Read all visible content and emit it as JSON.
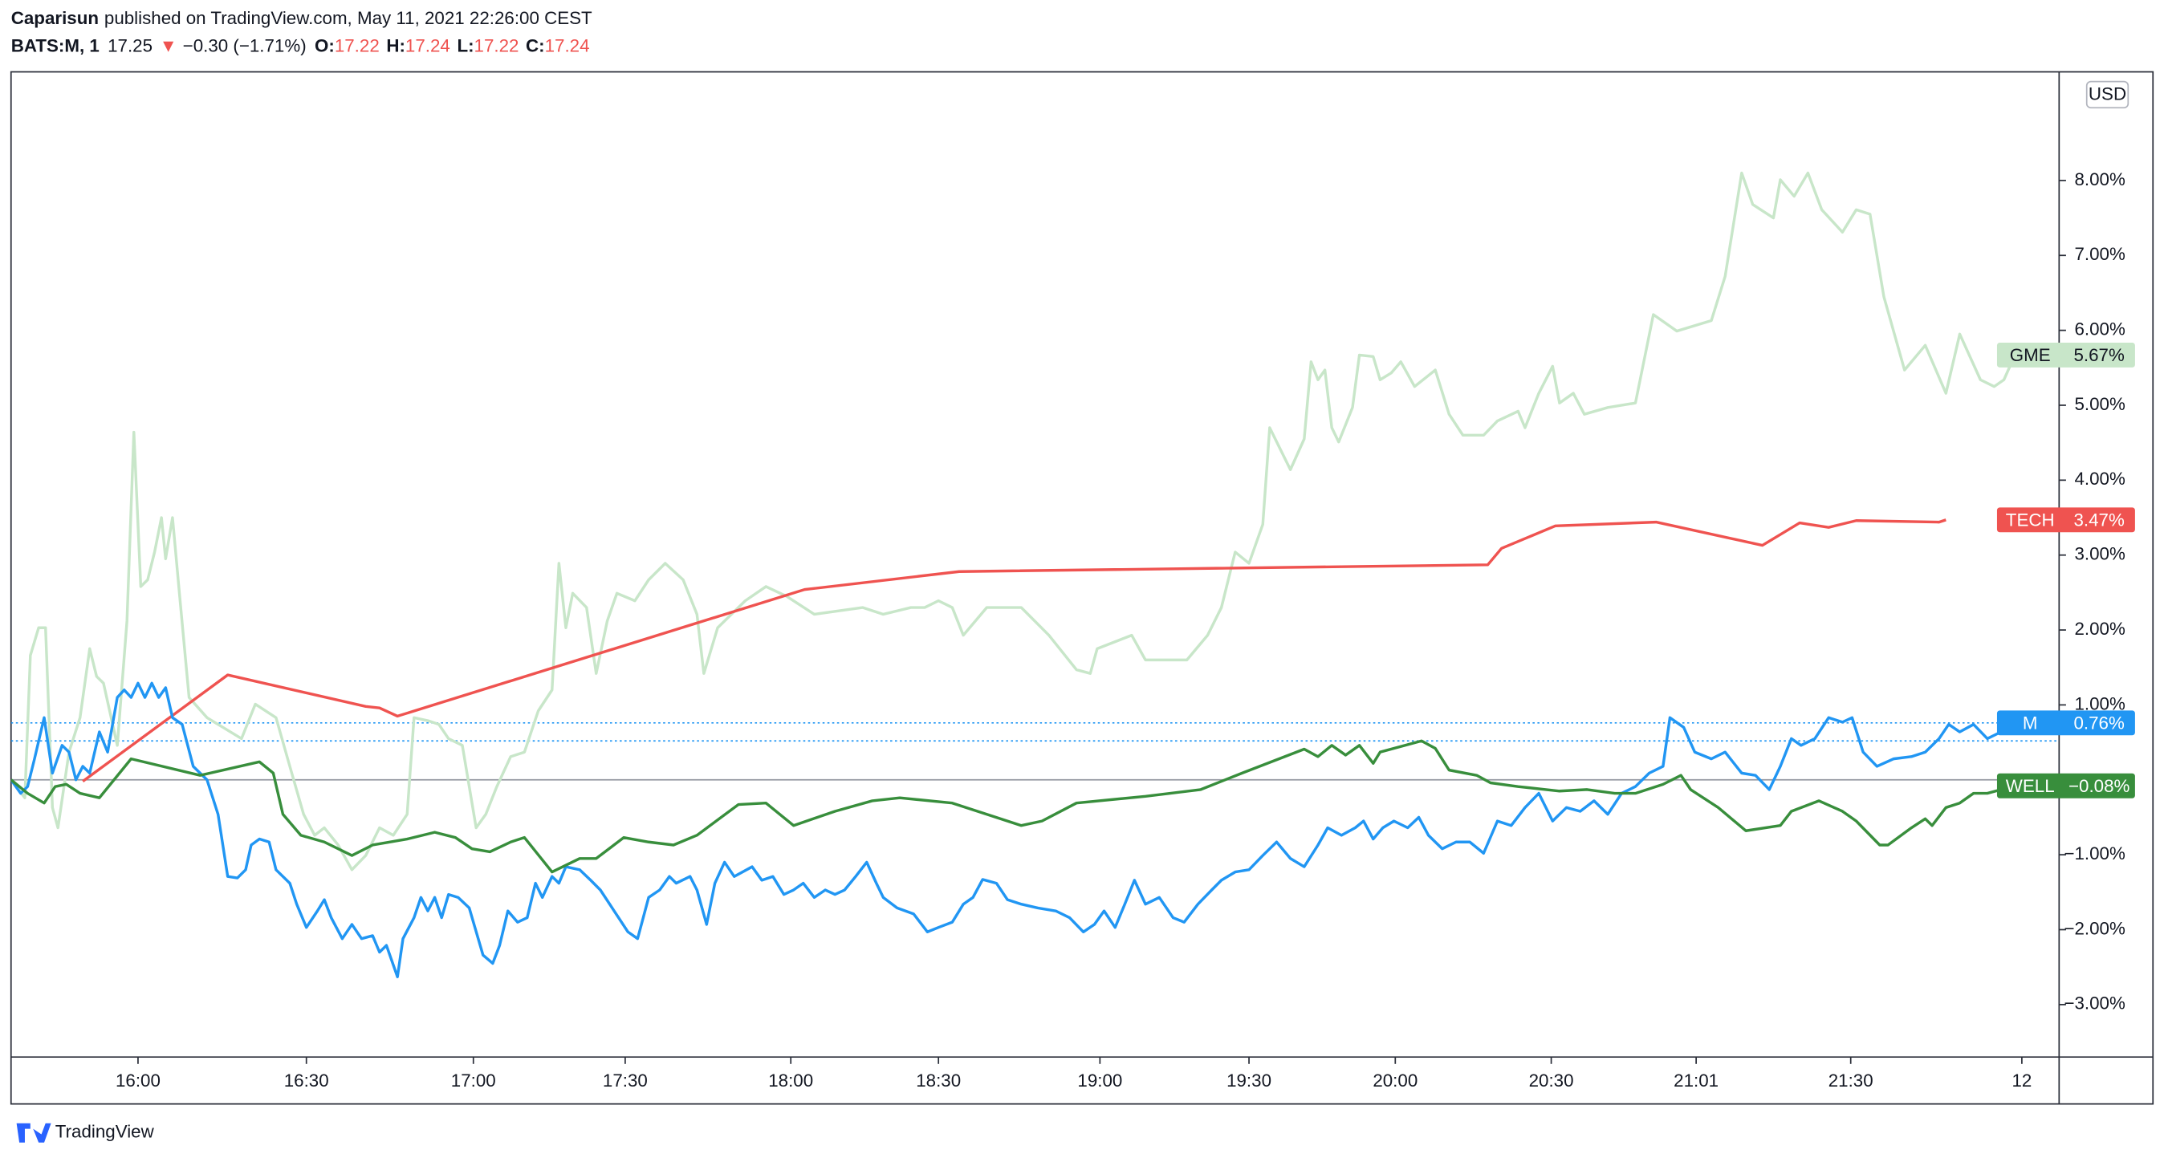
{
  "header": {
    "author": "Caparisun",
    "published": "published on TradingView.com, May 11, 2021 22:26:00 CEST",
    "symbol": "BATS:M, 1",
    "last": "17.25",
    "arrow": "▼",
    "change": "−0.30 (−1.71%)",
    "ohlc": [
      {
        "key": "O:",
        "value": "17.22"
      },
      {
        "key": "H:",
        "value": "17.24"
      },
      {
        "key": "L:",
        "value": "17.22"
      },
      {
        "key": "C:",
        "value": "17.24"
      }
    ]
  },
  "footer": {
    "brand": "TradingView"
  },
  "chart_data": {
    "type": "line",
    "currency": "USD",
    "grid": false,
    "xlim": [
      8,
      1492
    ],
    "ylim": [
      -3.7,
      9.45
    ],
    "xticks": [
      {
        "value": 100,
        "label": "16:00"
      },
      {
        "value": 222,
        "label": "16:30"
      },
      {
        "value": 343,
        "label": "17:00"
      },
      {
        "value": 453,
        "label": "17:30"
      },
      {
        "value": 573,
        "label": "18:00"
      },
      {
        "value": 680,
        "label": "18:30"
      },
      {
        "value": 797,
        "label": "19:00"
      },
      {
        "value": 905,
        "label": "19:30"
      },
      {
        "value": 1011,
        "label": "20:00"
      },
      {
        "value": 1124,
        "label": "20:30"
      },
      {
        "value": 1229,
        "label": "21:01"
      },
      {
        "value": 1341,
        "label": "21:30"
      },
      {
        "value": 1465,
        "label": "12"
      }
    ],
    "yticks": [
      {
        "value": -3,
        "label": "−3.00%"
      },
      {
        "value": -2,
        "label": "−2.00%"
      },
      {
        "value": -1,
        "label": "−1.00%"
      },
      {
        "value": 1,
        "label": "1.00%"
      },
      {
        "value": 2,
        "label": "2.00%"
      },
      {
        "value": 3,
        "label": "3.00%"
      },
      {
        "value": 4,
        "label": "4.00%"
      },
      {
        "value": 5,
        "label": "5.00%"
      },
      {
        "value": 6,
        "label": "6.00%"
      },
      {
        "value": 7,
        "label": "7.00%"
      },
      {
        "value": 8,
        "label": "8.00%"
      }
    ],
    "baseline": 0,
    "dotted_lines": [
      0.76,
      0.52
    ],
    "series": [
      {
        "name": "GME",
        "color": "#c8e6c9",
        "label_text_color": "#131722",
        "price_label": {
          "value": 5.67,
          "label": "5.67%"
        },
        "x": [
          8,
          18,
          22,
          28,
          33,
          38,
          42,
          50,
          58,
          65,
          70,
          75,
          85,
          92,
          97,
          102,
          107,
          112,
          117,
          120,
          125,
          130,
          137,
          150,
          175,
          185,
          200,
          210,
          220,
          228,
          235,
          245,
          255,
          265,
          275,
          285,
          295,
          300,
          310,
          318,
          325,
          335,
          345,
          352,
          360,
          370,
          380,
          390,
          400,
          405,
          410,
          415,
          425,
          432,
          440,
          447,
          460,
          470,
          482,
          495,
          505,
          510,
          520,
          540,
          555,
          570,
          590,
          625,
          640,
          660,
          670,
          680,
          690,
          698,
          715,
          740,
          760,
          780,
          790,
          795,
          820,
          830,
          860,
          875,
          885,
          895,
          905,
          915,
          920,
          935,
          945,
          950,
          955,
          960,
          965,
          970,
          980,
          985,
          995,
          1000,
          1008,
          1015,
          1025,
          1040,
          1050,
          1060,
          1075,
          1085,
          1100,
          1105,
          1115,
          1125,
          1130,
          1140,
          1148,
          1165,
          1185,
          1198,
          1215,
          1240,
          1250,
          1262,
          1270,
          1285,
          1290,
          1300,
          1310,
          1320,
          1335,
          1345,
          1355,
          1365,
          1380,
          1395,
          1410,
          1420,
          1435,
          1445,
          1452,
          1460
        ],
        "values": [
          0,
          -0.24,
          1.66,
          2.03,
          2.03,
          -0.37,
          -0.64,
          0.37,
          0.83,
          1.75,
          1.38,
          1.29,
          0.46,
          2.12,
          4.64,
          2.58,
          2.67,
          3.04,
          3.5,
          2.95,
          3.5,
          2.49,
          1.1,
          0.83,
          0.55,
          1.01,
          0.83,
          0.18,
          -0.46,
          -0.74,
          -0.64,
          -0.87,
          -1.2,
          -1.01,
          -0.64,
          -0.74,
          -0.46,
          0.83,
          0.79,
          0.74,
          0.55,
          0.46,
          -0.64,
          -0.46,
          -0.09,
          0.31,
          0.37,
          0.92,
          1.2,
          2.89,
          2.03,
          2.49,
          2.3,
          1.42,
          2.12,
          2.49,
          2.39,
          2.67,
          2.89,
          2.67,
          2.21,
          1.42,
          2.03,
          2.39,
          2.58,
          2.45,
          2.21,
          2.3,
          2.21,
          2.3,
          2.3,
          2.39,
          2.3,
          1.93,
          2.3,
          2.3,
          1.93,
          1.47,
          1.42,
          1.75,
          1.93,
          1.6,
          1.6,
          1.93,
          2.3,
          3.04,
          2.89,
          3.41,
          4.7,
          4.14,
          4.55,
          5.58,
          5.34,
          5.47,
          4.7,
          4.51,
          4.97,
          5.67,
          5.65,
          5.34,
          5.43,
          5.58,
          5.25,
          5.47,
          4.88,
          4.6,
          4.6,
          4.79,
          4.92,
          4.7,
          5.16,
          5.52,
          5.03,
          5.16,
          4.88,
          4.97,
          5.03,
          6.21,
          5.99,
          6.13,
          6.72,
          8.1,
          7.68,
          7.5,
          8.01,
          7.79,
          8.1,
          7.61,
          7.31,
          7.61,
          7.55,
          6.45,
          5.47,
          5.8,
          5.16,
          5.95,
          5.34,
          5.25,
          5.34,
          5.67
        ]
      },
      {
        "name": "TECH",
        "color": "#ef5350",
        "label_text_color": "#ffffff",
        "price_label": {
          "value": 3.47,
          "label": "3.47%"
        },
        "x": [
          60,
          165,
          265,
          275,
          288,
          583,
          695,
          1078,
          1088,
          1127,
          1200,
          1277,
          1304,
          1325,
          1345,
          1405,
          1410
        ],
        "values": [
          -0.02,
          1.4,
          0.98,
          0.96,
          0.85,
          2.54,
          2.78,
          2.87,
          3.09,
          3.39,
          3.44,
          3.13,
          3.43,
          3.37,
          3.46,
          3.44,
          3.47
        ]
      },
      {
        "name": "M",
        "color": "#2196f3",
        "label_text_color": "#ffffff",
        "price_label": {
          "value": 0.76,
          "label": "0.76%"
        },
        "x": [
          8,
          15,
          20,
          25,
          32,
          38,
          45,
          50,
          55,
          60,
          65,
          72,
          78,
          85,
          90,
          95,
          100,
          105,
          110,
          115,
          120,
          125,
          132,
          140,
          150,
          158,
          165,
          172,
          178,
          182,
          188,
          195,
          200,
          210,
          215,
          222,
          230,
          235,
          240,
          248,
          255,
          262,
          270,
          275,
          280,
          288,
          292,
          300,
          305,
          310,
          315,
          320,
          325,
          332,
          340,
          350,
          357,
          362,
          368,
          375,
          382,
          388,
          393,
          400,
          405,
          410,
          420,
          428,
          435,
          445,
          455,
          462,
          470,
          478,
          485,
          490,
          500,
          505,
          512,
          518,
          525,
          532,
          545,
          552,
          560,
          568,
          575,
          582,
          590,
          598,
          605,
          612,
          620,
          628,
          635,
          640,
          650,
          662,
          672,
          680,
          690,
          698,
          705,
          712,
          722,
          730,
          740,
          752,
          765,
          775,
          785,
          793,
          800,
          808,
          815,
          822,
          830,
          840,
          850,
          858,
          868,
          878,
          885,
          895,
          905,
          915,
          925,
          935,
          945,
          955,
          962,
          972,
          982,
          988,
          995,
          1002,
          1010,
          1020,
          1028,
          1035,
          1045,
          1055,
          1065,
          1075,
          1085,
          1095,
          1105,
          1115,
          1125,
          1135,
          1145,
          1155,
          1165,
          1175,
          1185,
          1195,
          1205,
          1210,
          1220,
          1228,
          1240,
          1250,
          1262,
          1272,
          1282,
          1290,
          1298,
          1305,
          1315,
          1325,
          1335,
          1342,
          1350,
          1360,
          1372,
          1385,
          1395,
          1405,
          1412,
          1420,
          1430,
          1440,
          1450,
          1462
        ],
        "values": [
          0,
          -0.18,
          -0.09,
          0.28,
          0.83,
          0.09,
          0.46,
          0.37,
          0,
          0.18,
          0.09,
          0.64,
          0.37,
          1.1,
          1.2,
          1.1,
          1.29,
          1.1,
          1.29,
          1.1,
          1.23,
          0.83,
          0.74,
          0.18,
          0,
          -0.46,
          -1.29,
          -1.31,
          -1.2,
          -0.87,
          -0.79,
          -0.83,
          -1.2,
          -1.38,
          -1.66,
          -1.97,
          -1.75,
          -1.6,
          -1.84,
          -2.12,
          -1.93,
          -2.12,
          -2.08,
          -2.3,
          -2.21,
          -2.63,
          -2.12,
          -1.84,
          -1.57,
          -1.75,
          -1.57,
          -1.84,
          -1.53,
          -1.57,
          -1.71,
          -2.34,
          -2.45,
          -2.21,
          -1.75,
          -1.9,
          -1.84,
          -1.38,
          -1.57,
          -1.29,
          -1.38,
          -1.16,
          -1.2,
          -1.34,
          -1.47,
          -1.75,
          -2.03,
          -2.12,
          -1.57,
          -1.47,
          -1.29,
          -1.38,
          -1.29,
          -1.47,
          -1.93,
          -1.38,
          -1.1,
          -1.29,
          -1.16,
          -1.34,
          -1.29,
          -1.53,
          -1.47,
          -1.38,
          -1.57,
          -1.47,
          -1.53,
          -1.47,
          -1.29,
          -1.1,
          -1.38,
          -1.57,
          -1.71,
          -1.79,
          -2.03,
          -1.97,
          -1.9,
          -1.66,
          -1.57,
          -1.33,
          -1.38,
          -1.6,
          -1.66,
          -1.71,
          -1.75,
          -1.84,
          -2.03,
          -1.93,
          -1.75,
          -1.97,
          -1.66,
          -1.34,
          -1.66,
          -1.57,
          -1.84,
          -1.9,
          -1.66,
          -1.47,
          -1.34,
          -1.23,
          -1.2,
          -1.01,
          -0.83,
          -1.05,
          -1.16,
          -0.87,
          -0.64,
          -0.74,
          -0.64,
          -0.55,
          -0.79,
          -0.64,
          -0.55,
          -0.64,
          -0.5,
          -0.74,
          -0.92,
          -0.83,
          -0.83,
          -0.98,
          -0.55,
          -0.61,
          -0.37,
          -0.18,
          -0.55,
          -0.37,
          -0.42,
          -0.28,
          -0.46,
          -0.18,
          -0.09,
          0.09,
          0.18,
          0.83,
          0.7,
          0.37,
          0.28,
          0.37,
          0.09,
          0.06,
          -0.13,
          0.18,
          0.55,
          0.46,
          0.55,
          0.83,
          0.77,
          0.83,
          0.37,
          0.18,
          0.28,
          0.31,
          0.37,
          0.55,
          0.74,
          0.64,
          0.74,
          0.55,
          0.64,
          0.76
        ]
      },
      {
        "name": "WELL",
        "color": "#388e3c",
        "label_text_color": "#ffffff",
        "price_label": {
          "value": -0.08,
          "label": "−0.08%"
        },
        "x": [
          8,
          20,
          32,
          40,
          48,
          58,
          72,
          95,
          145,
          188,
          198,
          205,
          218,
          235,
          255,
          270,
          295,
          315,
          330,
          342,
          355,
          370,
          380,
          400,
          420,
          432,
          452,
          470,
          488,
          505,
          535,
          555,
          575,
          605,
          632,
          652,
          690,
          740,
          755,
          780,
          830,
          870,
          900,
          945,
          955,
          965,
          975,
          985,
          995,
          1000,
          1030,
          1040,
          1050,
          1070,
          1080,
          1100,
          1130,
          1150,
          1170,
          1185,
          1205,
          1218,
          1225,
          1245,
          1265,
          1290,
          1298,
          1318,
          1335,
          1345,
          1362,
          1368,
          1385,
          1395,
          1400,
          1410,
          1420,
          1430,
          1440,
          1460
        ],
        "values": [
          0,
          -0.18,
          -0.31,
          -0.09,
          -0.06,
          -0.18,
          -0.24,
          0.28,
          0.06,
          0.24,
          0.09,
          -0.46,
          -0.74,
          -0.83,
          -1.01,
          -0.87,
          -0.79,
          -0.7,
          -0.77,
          -0.92,
          -0.96,
          -0.83,
          -0.77,
          -1.23,
          -1.05,
          -1.05,
          -0.77,
          -0.83,
          -0.87,
          -0.74,
          -0.33,
          -0.31,
          -0.61,
          -0.42,
          -0.28,
          -0.24,
          -0.31,
          -0.61,
          -0.55,
          -0.31,
          -0.22,
          -0.13,
          0.09,
          0.41,
          0.31,
          0.46,
          0.33,
          0.46,
          0.22,
          0.37,
          0.52,
          0.42,
          0.13,
          0.06,
          -0.04,
          -0.09,
          -0.15,
          -0.13,
          -0.18,
          -0.18,
          -0.06,
          0.06,
          -0.13,
          -0.37,
          -0.68,
          -0.61,
          -0.42,
          -0.28,
          -0.42,
          -0.55,
          -0.87,
          -0.87,
          -0.64,
          -0.52,
          -0.61,
          -0.37,
          -0.31,
          -0.18,
          -0.18,
          -0.08
        ]
      }
    ]
  }
}
